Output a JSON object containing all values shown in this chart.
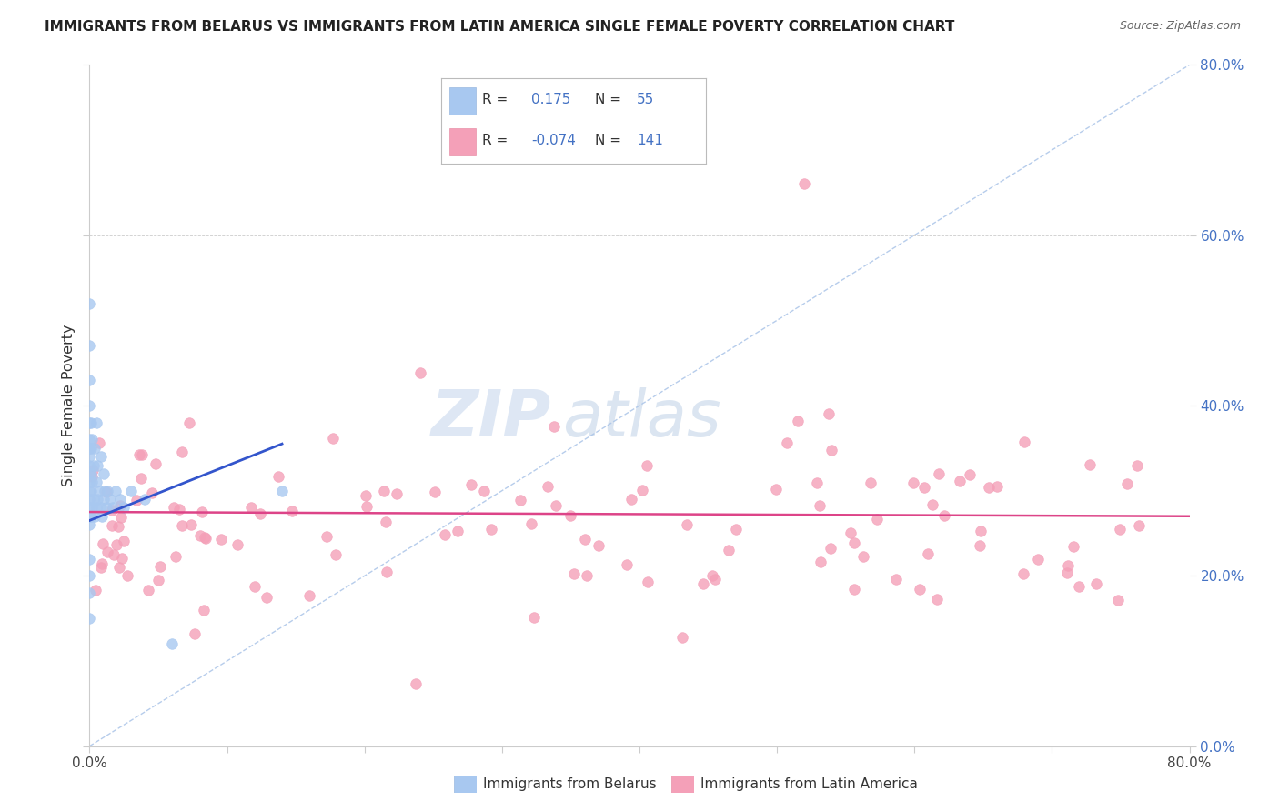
{
  "title": "IMMIGRANTS FROM BELARUS VS IMMIGRANTS FROM LATIN AMERICA SINGLE FEMALE POVERTY CORRELATION CHART",
  "source": "Source: ZipAtlas.com",
  "ylabel": "Single Female Poverty",
  "watermark_zip": "ZIP",
  "watermark_atlas": "atlas",
  "belarus_R": 0.175,
  "belarus_N": 55,
  "latam_R": -0.074,
  "latam_N": 141,
  "belarus_color": "#a8c8f0",
  "latam_color": "#f4a0b8",
  "belarus_line_color": "#3355cc",
  "latam_line_color": "#dd4488",
  "diag_line_color": "#aac4e8",
  "background_color": "#ffffff",
  "xlim": [
    0,
    0.8
  ],
  "ylim": [
    0,
    0.8
  ],
  "right_ytick_color": "#4472c4",
  "legend_border_color": "#bbbbbb",
  "legend_text_color": "#333333",
  "legend_num_color": "#4472c4"
}
